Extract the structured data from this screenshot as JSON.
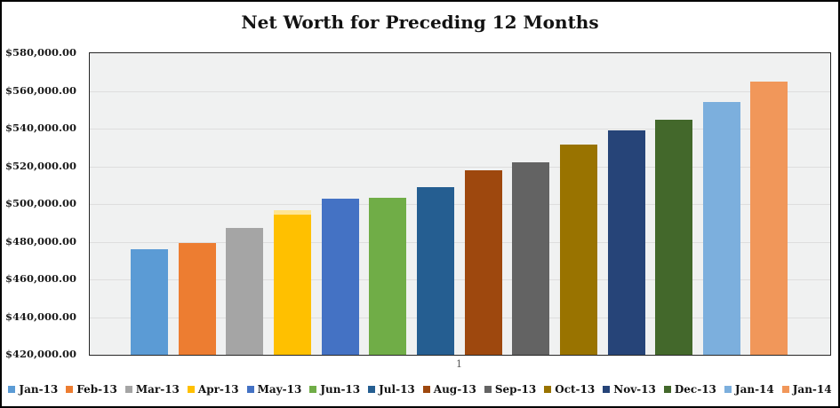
{
  "title": "Net Worth for Preceding 12 Months",
  "x_axis": {
    "category_label": "1"
  },
  "chart_data": {
    "type": "bar",
    "title": "Net Worth for Preceding 12 Months",
    "xlabel": "",
    "ylabel": "",
    "categories": [
      "1"
    ],
    "series": [
      {
        "name": "Jan-13",
        "value": 476000,
        "color": "#5B9BD5"
      },
      {
        "name": "Feb-13",
        "value": 479500,
        "color": "#ED7D31"
      },
      {
        "name": "Mar-13",
        "value": 487500,
        "color": "#A5A5A5"
      },
      {
        "name": "Apr-13",
        "value": 494500,
        "color": "#FFC000",
        "cap_color": "#FFE593"
      },
      {
        "name": "May-13",
        "value": 503000,
        "color": "#4472C4"
      },
      {
        "name": "Jun-13",
        "value": 503500,
        "color": "#70AD47"
      },
      {
        "name": "Jul-13",
        "value": 509000,
        "color": "#255E91"
      },
      {
        "name": "Aug-13",
        "value": 518000,
        "color": "#9E480E"
      },
      {
        "name": "Sep-13",
        "value": 522000,
        "color": "#636363"
      },
      {
        "name": "Oct-13",
        "value": 531500,
        "color": "#997300"
      },
      {
        "name": "Nov-13",
        "value": 539000,
        "color": "#264478"
      },
      {
        "name": "Dec-13",
        "value": 544500,
        "color": "#43682B"
      },
      {
        "name": "Jan-14",
        "value": 554000,
        "color": "#7CAFDD"
      },
      {
        "name": "Jan-14",
        "value": 565000,
        "color": "#F1975A"
      }
    ],
    "ylim": [
      420000,
      580000
    ],
    "ytick_step": 20000,
    "ytick_labels": [
      "$580,000.00",
      "$560,000.00",
      "$540,000.00",
      "$520,000.00",
      "$500,000.00",
      "$480,000.00",
      "$460,000.00",
      "$440,000.00",
      "$420,000.00"
    ],
    "grid": true,
    "legend_position": "bottom",
    "style_colors": {
      "frame_border": "#000000",
      "plot_background": "#F0F1F1",
      "gridline": "#DEDEDE",
      "axis_text": "#1C1C1C",
      "category_text": "#595959"
    }
  }
}
